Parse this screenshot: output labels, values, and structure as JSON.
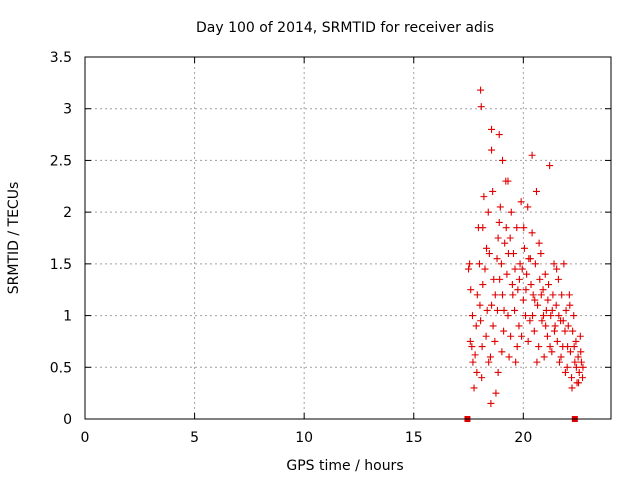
{
  "chart_data": {
    "type": "scatter",
    "title": "Day 100 of 2014, SRMTID for receiver adis",
    "xlabel": "GPS time / hours",
    "ylabel": "SRMTID / TECUs",
    "xlim": [
      0,
      24
    ],
    "ylim": [
      0,
      3.5
    ],
    "x_ticks": [
      0,
      5,
      10,
      15,
      20
    ],
    "x_tick_labels": [
      "0",
      "5",
      "10",
      "15",
      "20"
    ],
    "y_ticks": [
      0,
      0.5,
      1,
      1.5,
      2,
      2.5,
      3,
      3.5
    ],
    "y_tick_labels": [
      "0",
      "0.5",
      "1",
      "1.5",
      "2",
      "2.5",
      "3",
      "3.5"
    ],
    "grid": true,
    "legend": "none",
    "marker": "+",
    "color": "#e00000",
    "series": [
      {
        "name": "adis",
        "points": [
          [
            17.5,
            1.45
          ],
          [
            17.55,
            1.5
          ],
          [
            17.6,
            1.25
          ],
          [
            17.65,
            0.7
          ],
          [
            17.7,
            0.55
          ],
          [
            17.75,
            0.3
          ],
          [
            17.8,
            0.62
          ],
          [
            17.85,
            0.9
          ],
          [
            17.9,
            1.2
          ],
          [
            17.95,
            1.85
          ],
          [
            18.0,
            1.5
          ],
          [
            18.05,
            0.95
          ],
          [
            18.1,
            0.4
          ],
          [
            18.15,
            1.3
          ],
          [
            18.2,
            2.15
          ],
          [
            18.25,
            1.45
          ],
          [
            18.3,
            0.8
          ],
          [
            18.35,
            1.05
          ],
          [
            18.4,
            2.0
          ],
          [
            18.45,
            1.6
          ],
          [
            18.5,
            0.6
          ],
          [
            18.55,
            1.1
          ],
          [
            18.6,
            2.2
          ],
          [
            18.65,
            1.35
          ],
          [
            18.7,
            0.75
          ],
          [
            18.75,
            0.25
          ],
          [
            18.8,
            1.55
          ],
          [
            18.85,
            0.45
          ],
          [
            18.9,
            1.9
          ],
          [
            18.95,
            2.05
          ],
          [
            19.0,
            1.5
          ],
          [
            19.05,
            1.2
          ],
          [
            19.1,
            0.85
          ],
          [
            19.15,
            1.7
          ],
          [
            19.2,
            2.3
          ],
          [
            19.25,
            1.4
          ],
          [
            19.3,
            1.0
          ],
          [
            19.35,
            0.6
          ],
          [
            19.4,
            1.75
          ],
          [
            19.45,
            2.0
          ],
          [
            19.5,
            1.3
          ],
          [
            19.55,
            1.6
          ],
          [
            19.6,
            1.05
          ],
          [
            19.65,
            0.55
          ],
          [
            19.7,
            1.85
          ],
          [
            19.75,
            1.25
          ],
          [
            19.8,
            0.9
          ],
          [
            19.85,
            1.5
          ],
          [
            19.9,
            2.1
          ],
          [
            19.95,
            1.45
          ],
          [
            20.0,
            1.15
          ],
          [
            20.05,
            1.65
          ],
          [
            20.1,
            1.0
          ],
          [
            20.15,
            1.4
          ],
          [
            20.2,
            2.05
          ],
          [
            20.25,
            1.55
          ],
          [
            20.3,
            0.95
          ],
          [
            20.35,
            1.3
          ],
          [
            20.4,
            1.8
          ],
          [
            20.45,
            1.2
          ],
          [
            20.5,
            0.85
          ],
          [
            20.55,
            1.5
          ],
          [
            20.6,
            2.2
          ],
          [
            20.65,
            1.1
          ],
          [
            20.7,
            0.7
          ],
          [
            20.75,
            1.35
          ],
          [
            20.8,
            1.6
          ],
          [
            20.85,
            0.95
          ],
          [
            20.9,
            1.25
          ],
          [
            20.95,
            0.6
          ],
          [
            21.0,
            1.4
          ],
          [
            21.05,
            1.05
          ],
          [
            21.1,
            0.8
          ],
          [
            21.15,
            1.3
          ],
          [
            21.2,
            2.45
          ],
          [
            21.25,
            1.0
          ],
          [
            21.3,
            0.65
          ],
          [
            21.35,
            1.2
          ],
          [
            21.4,
            1.5
          ],
          [
            21.45,
            0.9
          ],
          [
            21.5,
            1.1
          ],
          [
            21.55,
            0.75
          ],
          [
            21.6,
            1.35
          ],
          [
            21.65,
            0.55
          ],
          [
            21.7,
            0.95
          ],
          [
            21.75,
            1.2
          ],
          [
            21.8,
            0.7
          ],
          [
            21.85,
            1.5
          ],
          [
            21.9,
            0.85
          ],
          [
            21.95,
            1.05
          ],
          [
            22.0,
            0.5
          ],
          [
            22.05,
            0.9
          ],
          [
            22.1,
            1.2
          ],
          [
            22.15,
            0.65
          ],
          [
            22.2,
            0.4
          ],
          [
            22.25,
            0.85
          ],
          [
            22.3,
            1.0
          ],
          [
            22.35,
            0.55
          ],
          [
            22.4,
            0.75
          ],
          [
            22.45,
            0.35
          ],
          [
            22.5,
            0.6
          ],
          [
            22.55,
            0.45
          ],
          [
            22.6,
            0.8
          ],
          [
            22.65,
            0.55
          ],
          [
            22.7,
            0.4
          ],
          [
            17.58,
            0.75
          ],
          [
            17.68,
            1.0
          ],
          [
            17.88,
            0.45
          ],
          [
            18.02,
            1.1
          ],
          [
            18.12,
            0.7
          ],
          [
            18.32,
            1.65
          ],
          [
            18.42,
            0.55
          ],
          [
            18.52,
            0.15
          ],
          [
            18.62,
            0.9
          ],
          [
            18.72,
            1.2
          ],
          [
            18.82,
            1.05
          ],
          [
            18.92,
            1.35
          ],
          [
            19.02,
            0.65
          ],
          [
            19.12,
            1.05
          ],
          [
            19.22,
            1.85
          ],
          [
            19.32,
            1.6
          ],
          [
            19.42,
            0.8
          ],
          [
            19.52,
            1.2
          ],
          [
            19.62,
            1.45
          ],
          [
            19.72,
            0.7
          ],
          [
            19.82,
            1.35
          ],
          [
            19.92,
            0.8
          ],
          [
            20.02,
            1.85
          ],
          [
            20.12,
            1.25
          ],
          [
            20.22,
            0.75
          ],
          [
            20.32,
            1.55
          ],
          [
            20.42,
            1.0
          ],
          [
            20.52,
            1.15
          ],
          [
            20.62,
            0.55
          ],
          [
            20.72,
            1.7
          ],
          [
            20.82,
            1.2
          ],
          [
            20.92,
            1.0
          ],
          [
            21.02,
            0.9
          ],
          [
            21.12,
            1.15
          ],
          [
            21.22,
            0.7
          ],
          [
            21.32,
            1.05
          ],
          [
            21.42,
            0.85
          ],
          [
            21.52,
            1.45
          ],
          [
            21.62,
            1.0
          ],
          [
            21.72,
            0.6
          ],
          [
            21.82,
            0.95
          ],
          [
            21.92,
            0.45
          ],
          [
            22.02,
            0.7
          ],
          [
            22.12,
            1.1
          ],
          [
            22.22,
            0.3
          ],
          [
            22.32,
            0.7
          ],
          [
            22.42,
            0.5
          ],
          [
            22.52,
            0.35
          ],
          [
            22.62,
            0.65
          ],
          [
            22.72,
            0.5
          ],
          [
            18.55,
            2.8
          ],
          [
            18.55,
            2.6
          ],
          [
            18.9,
            2.75
          ],
          [
            19.3,
            2.3
          ],
          [
            20.4,
            2.55
          ],
          [
            19.05,
            2.5
          ],
          [
            18.85,
            1.75
          ],
          [
            18.15,
            1.85
          ],
          [
            18.05,
            3.18
          ],
          [
            18.08,
            3.02
          ],
          [
            17.45,
            0.0
          ],
          [
            22.35,
            0.0
          ]
        ]
      }
    ]
  }
}
